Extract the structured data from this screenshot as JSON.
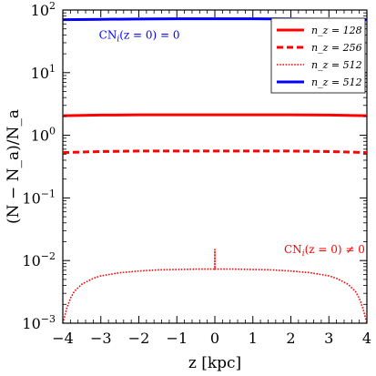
{
  "chart_data": {
    "type": "line",
    "title": "",
    "xlabel": "z [kpc]",
    "ylabel": "(N − N_a)/N_a",
    "xlim": [
      -4,
      4
    ],
    "ylim": [
      0.001,
      100
    ],
    "yscale": "log",
    "grid": false,
    "legend_position": "top-right",
    "x_ticks": [
      -4,
      -3,
      -2,
      -1,
      0,
      1,
      2,
      3,
      4
    ],
    "x_tick_labels": [
      "−4",
      "−3",
      "−2",
      "−1",
      "0",
      "1",
      "2",
      "3",
      "4"
    ],
    "y_ticks": [
      0.001,
      0.01,
      0.1,
      1,
      10,
      100
    ],
    "y_tick_labels": [
      {
        "base": "10",
        "exp": "−3"
      },
      {
        "base": "10",
        "exp": "−2"
      },
      {
        "base": "10",
        "exp": "−1"
      },
      {
        "base": "10",
        "exp": "0"
      },
      {
        "base": "10",
        "exp": "1"
      },
      {
        "base": "10",
        "exp": "2"
      }
    ],
    "series": [
      {
        "name": "n_z = 128",
        "legend_label": "n_z = 128",
        "color": "#ff0000",
        "style": "solid",
        "x": [
          -4,
          -3,
          -2,
          -1,
          0,
          1,
          2,
          3,
          4
        ],
        "y": [
          2.05,
          2.1,
          2.12,
          2.12,
          2.12,
          2.12,
          2.12,
          2.1,
          2.05
        ]
      },
      {
        "name": "n_z = 256",
        "legend_label": "n_z = 256",
        "color": "#ff0000",
        "style": "dashed",
        "x": [
          -4,
          -3,
          -2,
          -1,
          0,
          1,
          2,
          3,
          4
        ],
        "y": [
          0.53,
          0.55,
          0.56,
          0.56,
          0.56,
          0.56,
          0.56,
          0.55,
          0.53
        ]
      },
      {
        "name": "n_z = 512",
        "legend_label": "n_z = 512",
        "color": "#ff0000",
        "style": "dotted",
        "x": [
          -4,
          -3.95,
          -3.9,
          -3.8,
          -3.7,
          -3.5,
          -3.2,
          -3,
          -2.5,
          -2,
          -1.5,
          -1,
          -0.5,
          -0.05,
          0,
          0,
          0,
          0.05,
          0.5,
          1,
          1.5,
          2,
          2.5,
          3,
          3.2,
          3.5,
          3.7,
          3.8,
          3.9,
          3.95,
          4
        ],
        "y": [
          0.001,
          0.0013,
          0.0017,
          0.0025,
          0.0032,
          0.0042,
          0.0052,
          0.0057,
          0.0064,
          0.0068,
          0.0071,
          0.0072,
          0.0073,
          0.0073,
          0.0073,
          0.015,
          0.0073,
          0.0073,
          0.0073,
          0.0072,
          0.0071,
          0.0068,
          0.0064,
          0.0057,
          0.0052,
          0.0042,
          0.0032,
          0.0025,
          0.0017,
          0.0013,
          0.001
        ]
      },
      {
        "name": "n_z = 512",
        "legend_label": "n_z = 512",
        "color": "#0000ff",
        "style": "solid",
        "x": [
          -4,
          -3,
          -2,
          -1,
          0,
          1,
          2,
          3,
          4
        ],
        "y": [
          70,
          71,
          72,
          72.5,
          72.5,
          72.5,
          72,
          71,
          70
        ]
      }
    ],
    "annotations": [
      {
        "text_main": "CN",
        "text_sub": "i",
        "text_rest": "(z = 0) = 0",
        "color": "#0000ff",
        "x": -3.05,
        "y": 40,
        "anchor": "start"
      },
      {
        "text_main": "CN",
        "text_sub": "i",
        "text_rest": "(z = 0) ≠ 0",
        "color": "#ff0000",
        "x": 3.95,
        "y": 0.015,
        "anchor": "end"
      }
    ]
  }
}
